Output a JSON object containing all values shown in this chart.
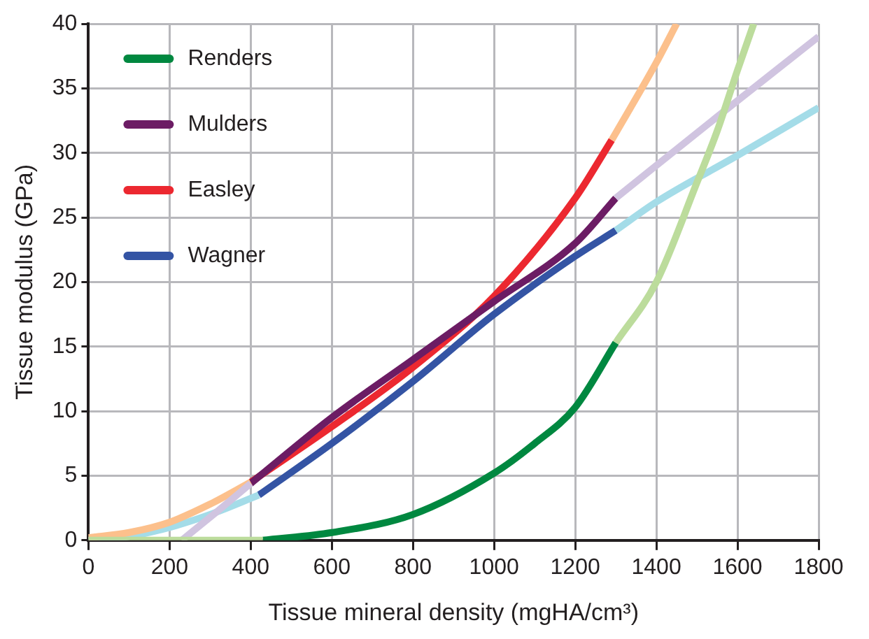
{
  "chart_data": {
    "type": "line",
    "xlabel": "Tissue mineral density (mgHA/cm³)",
    "ylabel": "Tissue modulus (GPa)",
    "xlim": [
      0,
      1800
    ],
    "xticks": [
      0,
      200,
      400,
      600,
      800,
      1000,
      1200,
      1400,
      1600,
      1800
    ],
    "ylim": [
      0,
      40
    ],
    "yticks": [
      0,
      5,
      10,
      15,
      20,
      25,
      30,
      35,
      40
    ],
    "grid": true,
    "legend": "top left",
    "marker": "none",
    "line_style": "solid",
    "series": [
      {
        "color": "#bcdc9c",
        "x": [
          0,
          430
        ],
        "values": [
          0,
          0
        ]
      },
      {
        "color": "#bcdc9c",
        "x": [
          1300,
          1400,
          1500,
          1550,
          1600,
          1640
        ],
        "values": [
          15.3,
          20,
          27.7,
          31.7,
          36.4,
          40
        ]
      },
      {
        "color": "#d0c4e0",
        "x": [
          230,
          320,
          400
        ],
        "values": [
          0,
          2.3,
          4.4
        ]
      },
      {
        "color": "#d0c4e0",
        "x": [
          1300,
          1550,
          1800
        ],
        "values": [
          26.5,
          32.8,
          39
        ]
      },
      {
        "color": "#fcc08c",
        "x": [
          0,
          100,
          200,
          300,
          400
        ],
        "values": [
          0.2,
          0.6,
          1.4,
          2.8,
          4.5
        ]
      },
      {
        "color": "#fcc08c",
        "x": [
          1290,
          1400,
          1450
        ],
        "values": [
          31,
          37,
          40
        ]
      },
      {
        "color": "#a4dce8",
        "x": [
          0,
          100,
          200,
          300,
          420
        ],
        "values": [
          0,
          0.3,
          1,
          2,
          3.5
        ]
      },
      {
        "color": "#a4dce8",
        "x": [
          1300,
          1400,
          1600,
          1800
        ],
        "values": [
          24,
          26.2,
          29.8,
          33.5
        ]
      },
      {
        "name": "Renders",
        "color": "#008840",
        "x": [
          430,
          600,
          800,
          1000,
          1100,
          1200,
          1300
        ],
        "values": [
          0,
          0.6,
          2,
          5.2,
          7.5,
          10.3,
          15.3
        ]
      },
      {
        "name": "Mulders",
        "color": "#6c1c64",
        "x": [
          400,
          600,
          800,
          1000,
          1200,
          1300
        ],
        "values": [
          4.4,
          9.5,
          14,
          18.5,
          23,
          26.5
        ]
      },
      {
        "name": "Easley",
        "color": "#ec2830",
        "x": [
          400,
          600,
          800,
          1000,
          1200,
          1290
        ],
        "values": [
          4.5,
          8.8,
          13.4,
          18.9,
          26.5,
          31
        ]
      },
      {
        "name": "Wagner",
        "color": "#3454a4",
        "x": [
          420,
          600,
          800,
          1000,
          1200,
          1300
        ],
        "values": [
          3.5,
          7.5,
          12.3,
          17.5,
          22,
          24
        ]
      }
    ]
  }
}
